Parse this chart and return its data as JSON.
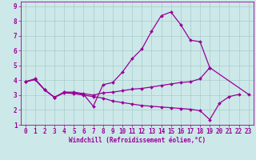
{
  "xlabel": "Windchill (Refroidissement éolien,°C)",
  "xlim": [
    -0.5,
    23.5
  ],
  "ylim": [
    1,
    9.3
  ],
  "xticks": [
    0,
    1,
    2,
    3,
    4,
    5,
    6,
    7,
    8,
    9,
    10,
    11,
    12,
    13,
    14,
    15,
    16,
    17,
    18,
    19,
    20,
    21,
    22,
    23
  ],
  "yticks": [
    1,
    2,
    3,
    4,
    5,
    6,
    7,
    8,
    9
  ],
  "background_color": "#cce8e8",
  "line_color": "#990099",
  "grid_color": "#aacccc",
  "lines": [
    {
      "x": [
        0,
        1,
        2,
        3,
        4,
        5,
        6,
        7,
        8,
        9,
        10,
        11,
        12,
        13,
        14,
        15,
        16,
        17,
        18,
        19
      ],
      "y": [
        3.9,
        4.1,
        3.35,
        2.85,
        3.2,
        3.15,
        3.05,
        2.25,
        3.7,
        3.85,
        4.55,
        5.45,
        6.1,
        7.3,
        8.35,
        8.6,
        7.75,
        6.7,
        6.6,
        4.85
      ]
    },
    {
      "x": [
        0,
        1,
        2,
        3,
        4,
        5,
        6,
        7,
        8,
        9,
        10,
        11,
        12,
        13,
        14,
        15,
        16,
        17,
        18,
        19
      ],
      "y": [
        3.9,
        4.05,
        3.35,
        2.85,
        3.2,
        3.2,
        3.1,
        3.0,
        3.15,
        3.2,
        3.3,
        3.4,
        3.45,
        3.55,
        3.65,
        3.75,
        3.85,
        3.9,
        4.1,
        4.85
      ]
    },
    {
      "x": [
        0,
        1,
        2,
        3,
        4,
        5,
        6,
        7,
        8,
        9,
        10,
        11,
        12,
        13,
        14,
        15,
        16,
        17,
        18,
        19,
        20,
        21,
        22
      ],
      "y": [
        3.9,
        4.05,
        3.35,
        2.85,
        3.15,
        3.1,
        3.0,
        2.9,
        2.8,
        2.6,
        2.5,
        2.4,
        2.3,
        2.25,
        2.2,
        2.15,
        2.1,
        2.05,
        1.95,
        1.35,
        2.45,
        2.9,
        3.05
      ]
    },
    {
      "x": [
        19,
        23
      ],
      "y": [
        4.85,
        3.05
      ]
    }
  ],
  "marker": "D",
  "markersize": 2.0,
  "linewidth": 0.9,
  "tick_fontsize": 5.5,
  "xlabel_fontsize": 5.5
}
